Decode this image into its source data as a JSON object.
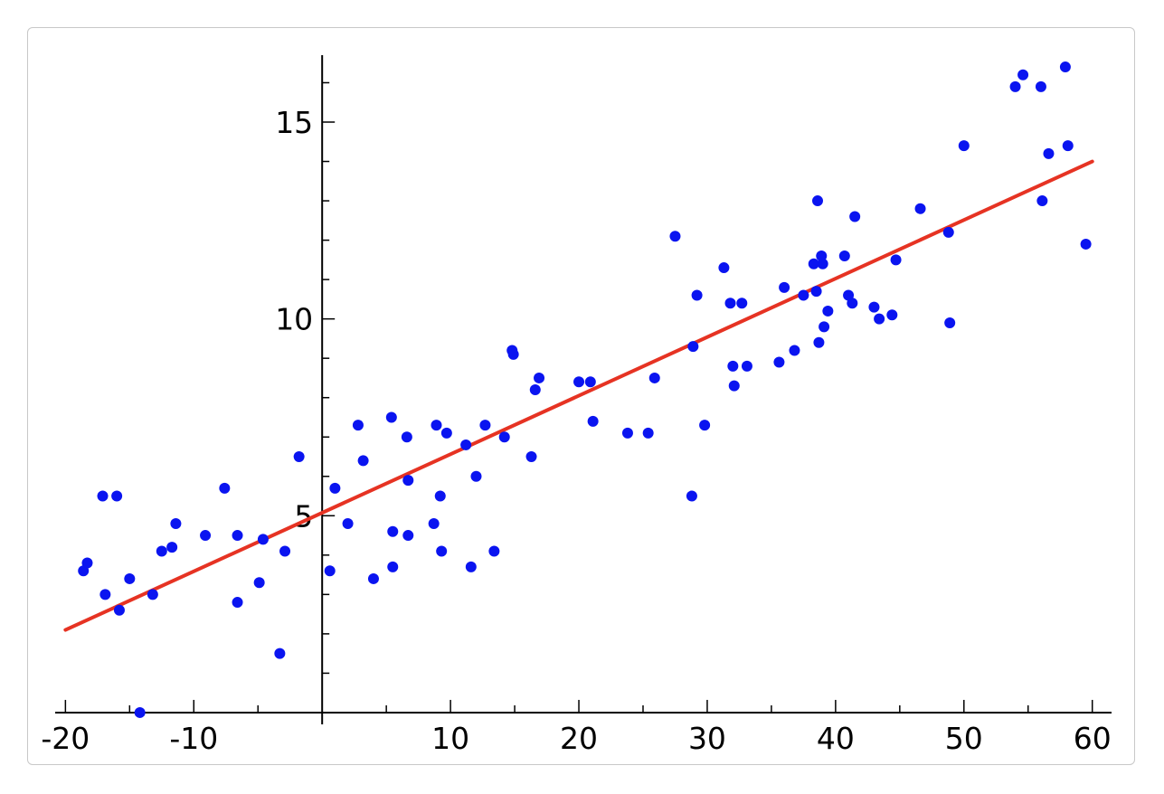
{
  "chart_data": {
    "type": "scatter",
    "title": "",
    "xlabel": "",
    "ylabel": "",
    "xlim": [
      -20.8,
      61.5
    ],
    "ylim": [
      -0.3,
      16.7
    ],
    "grid": false,
    "legend": "none",
    "colors": {
      "points": "#0a14f0",
      "line": "#e63323",
      "axes": "#000000"
    },
    "x_ticks": [
      {
        "value": -20,
        "label": "-20"
      },
      {
        "value": -10,
        "label": "-10"
      },
      {
        "value": 10,
        "label": "10"
      },
      {
        "value": 20,
        "label": "20"
      },
      {
        "value": 30,
        "label": "30"
      },
      {
        "value": 40,
        "label": "40"
      },
      {
        "value": 50,
        "label": "50"
      },
      {
        "value": 60,
        "label": "60"
      }
    ],
    "y_ticks": [
      {
        "value": 5,
        "label": "5"
      },
      {
        "value": 10,
        "label": "10"
      },
      {
        "value": 15,
        "label": "15"
      }
    ],
    "x_minor_ticks": [
      -15,
      -5,
      5,
      15,
      25,
      35,
      45,
      55
    ],
    "y_minor_ticks": [
      1,
      2,
      3,
      4,
      6,
      7,
      8,
      9,
      11,
      12,
      13,
      14,
      16
    ],
    "series": [
      {
        "type": "scatter",
        "x": [
          -18.6,
          -18.3,
          -17.1,
          -16.9,
          -16.0,
          -15.8,
          -15.0,
          -14.2,
          -13.2,
          -12.5,
          -11.7,
          -11.4,
          -9.1,
          -7.6,
          -6.6,
          -6.6,
          -4.9,
          -4.6,
          -3.3,
          -2.9,
          -1.8,
          0.6,
          1.0,
          2.0,
          2.8,
          3.2,
          4.0,
          5.4,
          5.5,
          5.5,
          6.6,
          6.7,
          6.7,
          8.7,
          8.9,
          9.2,
          9.3,
          9.7,
          11.2,
          11.6,
          12.0,
          12.7,
          13.4,
          14.2,
          14.8,
          14.9,
          16.3,
          16.6,
          16.9,
          20.0,
          20.9,
          21.1,
          23.8,
          25.4,
          25.9,
          27.5,
          28.8,
          28.9,
          29.2,
          29.8,
          31.3,
          31.8,
          32.0,
          32.1,
          32.7,
          33.1,
          35.6,
          36.0,
          36.8,
          37.5,
          38.3,
          38.5,
          38.6,
          38.7,
          38.9,
          39.0,
          39.1,
          39.4,
          40.7,
          41.0,
          41.3,
          41.5,
          43.0,
          43.4,
          44.4,
          44.7,
          46.6,
          48.8,
          48.9,
          50.0,
          54.0,
          54.6,
          56.0,
          56.1,
          56.6,
          57.9,
          58.1,
          59.5
        ],
        "y": [
          3.6,
          3.8,
          5.5,
          3.0,
          5.5,
          2.6,
          3.4,
          0.0,
          3.0,
          4.1,
          4.2,
          4.8,
          4.5,
          5.7,
          4.5,
          2.8,
          3.3,
          4.4,
          1.5,
          4.1,
          6.5,
          3.6,
          5.7,
          4.8,
          7.3,
          6.4,
          3.4,
          7.5,
          4.6,
          3.7,
          7.0,
          4.5,
          5.9,
          4.8,
          7.3,
          5.5,
          4.1,
          7.1,
          6.8,
          3.7,
          6.0,
          7.3,
          4.1,
          7.0,
          9.2,
          9.1,
          6.5,
          8.2,
          8.5,
          8.4,
          8.4,
          7.4,
          7.1,
          7.1,
          8.5,
          12.1,
          5.5,
          9.3,
          10.6,
          7.3,
          11.3,
          10.4,
          8.8,
          8.3,
          10.4,
          8.8,
          8.9,
          10.8,
          9.2,
          10.6,
          11.4,
          10.7,
          13.0,
          9.4,
          11.6,
          11.4,
          9.8,
          10.2,
          11.6,
          10.6,
          10.4,
          12.6,
          10.3,
          10.0,
          10.1,
          11.5,
          12.8,
          12.2,
          9.9,
          14.4,
          15.9,
          16.2,
          15.9,
          13.0,
          14.2,
          16.4,
          14.4,
          11.9
        ]
      },
      {
        "type": "line",
        "x": [
          -20,
          60
        ],
        "y": [
          2.1,
          14.0
        ]
      }
    ]
  }
}
